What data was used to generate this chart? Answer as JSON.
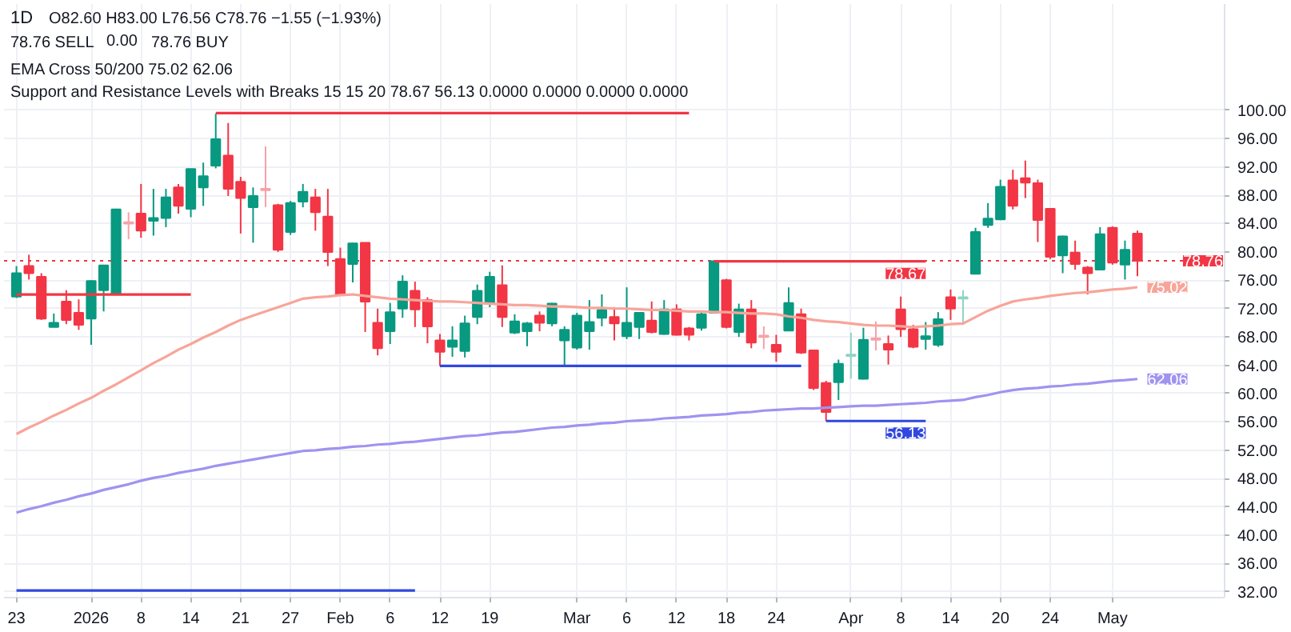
{
  "chart_data": {
    "type": "candlestick",
    "title": "1D",
    "categories": [
      "23",
      null,
      null,
      null,
      null,
      null,
      "2026",
      null,
      null,
      null,
      "8",
      null,
      null,
      null,
      "14",
      null,
      null,
      null,
      "21",
      null,
      null,
      null,
      "27",
      null,
      null,
      null,
      "Feb",
      null,
      null,
      null,
      "6",
      null,
      null,
      null,
      "12",
      null,
      null,
      null,
      "19",
      null,
      null,
      null,
      null,
      null,
      null,
      "Mar",
      null,
      null,
      null,
      "6",
      null,
      null,
      null,
      "12",
      null,
      null,
      null,
      "18",
      null,
      null,
      null,
      "24",
      null,
      null,
      null,
      null,
      null,
      "Apr",
      null,
      null,
      null,
      "8",
      null,
      null,
      null,
      "14",
      null,
      null,
      null,
      "20",
      null,
      null,
      null,
      "24",
      null,
      null,
      null,
      null,
      "May",
      null,
      null
    ],
    "ohlc": [
      [
        73.7,
        78.0,
        73.5,
        77.0
      ],
      [
        78.0,
        79.6,
        76.1,
        77.0
      ],
      [
        76.5,
        77.0,
        70.4,
        70.6
      ],
      [
        69.4,
        71.3,
        69.4,
        70.0
      ],
      [
        73.0,
        74.6,
        69.8,
        70.4
      ],
      [
        71.4,
        73.3,
        69.0,
        69.7
      ],
      [
        70.6,
        76.0,
        66.9,
        75.9
      ],
      [
        74.6,
        78.1,
        71.6,
        78.1
      ],
      [
        74.0,
        86.1,
        74.0,
        86.0
      ],
      [
        84.2,
        85.6,
        81.8,
        84.0
      ],
      [
        85.4,
        89.6,
        82.0,
        83.0
      ],
      [
        84.4,
        88.9,
        82.3,
        84.8
      ],
      [
        84.8,
        88.9,
        83.5,
        87.7
      ],
      [
        89.1,
        89.6,
        85.4,
        86.5
      ],
      [
        86.1,
        91.7,
        84.9,
        91.7
      ],
      [
        89.1,
        92.6,
        86.5,
        90.7
      ],
      [
        92.2,
        99.5,
        91.8,
        95.9
      ],
      [
        93.6,
        98.2,
        87.9,
        88.9
      ],
      [
        89.9,
        90.6,
        82.6,
        87.6
      ],
      [
        86.3,
        89.1,
        81.3,
        87.9
      ],
      [
        88.9,
        94.9,
        86.3,
        88.7
      ],
      [
        86.6,
        86.8,
        80.0,
        80.3
      ],
      [
        82.8,
        87.2,
        82.4,
        86.9
      ],
      [
        87.1,
        89.6,
        86.3,
        88.5
      ],
      [
        87.7,
        88.9,
        83.0,
        85.6
      ],
      [
        85.0,
        88.9,
        78.0,
        80.0
      ],
      [
        79.0,
        80.6,
        74.0,
        74.0
      ],
      [
        78.3,
        81.3,
        75.7,
        81.2
      ],
      [
        81.3,
        81.3,
        68.7,
        73.0
      ],
      [
        70.0,
        72.0,
        65.4,
        66.4
      ],
      [
        68.8,
        72.8,
        67.0,
        71.5
      ],
      [
        72.0,
        76.7,
        70.7,
        75.8
      ],
      [
        74.5,
        75.8,
        69.4,
        71.9
      ],
      [
        73.2,
        73.6,
        67.1,
        69.5
      ],
      [
        67.5,
        68.4,
        63.9,
        65.9
      ],
      [
        66.6,
        69.5,
        65.2,
        67.5
      ],
      [
        66.0,
        71.0,
        65.1,
        69.9
      ],
      [
        70.8,
        75.4,
        69.8,
        74.5
      ],
      [
        72.8,
        77.2,
        72.2,
        76.5
      ],
      [
        75.3,
        78.1,
        69.4,
        70.8
      ],
      [
        68.6,
        71.2,
        68.4,
        70.2
      ],
      [
        68.8,
        70.1,
        66.7,
        69.9
      ],
      [
        71.0,
        71.6,
        68.8,
        70.0
      ],
      [
        69.9,
        72.8,
        69.5,
        72.7
      ],
      [
        67.5,
        69.5,
        63.9,
        69.0
      ],
      [
        66.5,
        71.4,
        66.2,
        71.0
      ],
      [
        68.8,
        73.2,
        66.2,
        70.1
      ],
      [
        70.7,
        74.0,
        69.5,
        71.8
      ],
      [
        70.8,
        72.2,
        67.5,
        69.9
      ],
      [
        68.1,
        75.0,
        67.7,
        70.0
      ],
      [
        69.4,
        71.4,
        67.7,
        71.4
      ],
      [
        70.3,
        73.0,
        68.5,
        68.7
      ],
      [
        68.4,
        73.2,
        68.3,
        71.9
      ],
      [
        71.9,
        72.6,
        68.2,
        68.3
      ],
      [
        69.2,
        69.4,
        67.5,
        68.3
      ],
      [
        69.3,
        71.6,
        68.9,
        71.2
      ],
      [
        71.4,
        78.8,
        71.3,
        78.7
      ],
      [
        76.0,
        76.2,
        69.2,
        69.4
      ],
      [
        68.7,
        72.7,
        68.0,
        71.9
      ],
      [
        71.9,
        73.2,
        66.4,
        67.2
      ],
      [
        68.2,
        69.5,
        66.3,
        68.0
      ],
      [
        66.9,
        68.3,
        64.5,
        65.9
      ],
      [
        68.9,
        75.0,
        68.8,
        72.8
      ],
      [
        71.2,
        72.0,
        65.6,
        65.8
      ],
      [
        66.1,
        66.2,
        60.5,
        60.8
      ],
      [
        61.5,
        61.8,
        56.13,
        57.4
      ],
      [
        61.6,
        64.8,
        59.1,
        64.2
      ],
      [
        65.3,
        68.6,
        62.1,
        65.5
      ],
      [
        62.1,
        69.3,
        62.0,
        67.6
      ],
      [
        67.8,
        70.2,
        66.1,
        67.6
      ],
      [
        67.0,
        68.2,
        64.1,
        66.2
      ],
      [
        71.9,
        73.7,
        68.0,
        69.1
      ],
      [
        69.1,
        69.7,
        66.4,
        66.6
      ],
      [
        67.7,
        70.1,
        66.2,
        68.1
      ],
      [
        66.9,
        71.5,
        66.6,
        70.5
      ],
      [
        73.6,
        74.7,
        70.4,
        72.0
      ],
      [
        73.4,
        74.6,
        69.7,
        73.6
      ],
      [
        76.9,
        83.4,
        76.9,
        82.8
      ],
      [
        83.8,
        86.9,
        83.4,
        84.7
      ],
      [
        84.6,
        90.2,
        84.5,
        89.2
      ],
      [
        90.1,
        91.6,
        86.0,
        86.5
      ],
      [
        90.4,
        92.9,
        87.6,
        89.8
      ],
      [
        89.7,
        90.2,
        81.4,
        84.5
      ],
      [
        86.1,
        86.2,
        79.0,
        79.3
      ],
      [
        79.5,
        82.3,
        77.0,
        82.2
      ],
      [
        79.9,
        81.6,
        77.5,
        78.3
      ],
      [
        77.8,
        78.0,
        74.0,
        77.0
      ],
      [
        77.5,
        83.5,
        77.4,
        82.5
      ],
      [
        83.4,
        83.6,
        78.2,
        78.5
      ],
      [
        78.2,
        81.6,
        76.1,
        80.3
      ],
      [
        82.6,
        83.0,
        76.56,
        78.76
      ]
    ],
    "colors": [
      "#089981",
      "#f23645",
      "#f23645",
      "#089981",
      "#f23645",
      "#f23645",
      "#089981",
      "#089981",
      "#089981",
      "#f7a1a8",
      "#f23645",
      "#089981",
      "#089981",
      "#f23645",
      "#089981",
      "#089981",
      "#089981",
      "#f23645",
      "#f23645",
      "#089981",
      "#f7a1a8",
      "#f23645",
      "#089981",
      "#089981",
      "#f23645",
      "#f23645",
      "#f23645",
      "#089981",
      "#f23645",
      "#f23645",
      "#089981",
      "#089981",
      "#f23645",
      "#f23645",
      "#f23645",
      "#089981",
      "#089981",
      "#089981",
      "#089981",
      "#f23645",
      "#089981",
      "#089981",
      "#f23645",
      "#089981",
      "#089981",
      "#089981",
      "#089981",
      "#089981",
      "#f23645",
      "#089981",
      "#089981",
      "#f23645",
      "#089981",
      "#f23645",
      "#f23645",
      "#089981",
      "#089981",
      "#f23645",
      "#089981",
      "#f23645",
      "#f7a1a8",
      "#f23645",
      "#089981",
      "#f23645",
      "#f23645",
      "#f23645",
      "#089981",
      "#8fd3c5",
      "#089981",
      "#f7a1a8",
      "#f23645",
      "#f23645",
      "#f23645",
      "#089981",
      "#089981",
      "#f23645",
      "#8fd3c5",
      "#089981",
      "#089981",
      "#089981",
      "#f23645",
      "#f23645",
      "#f23645",
      "#f23645",
      "#089981",
      "#f23645",
      "#f23645",
      "#089981",
      "#f23645",
      "#089981",
      "#f23645"
    ],
    "series": [
      {
        "type": "line",
        "color": "#f7a59a",
        "values": [
          54.3,
          55.2,
          56.0,
          56.9,
          57.7,
          58.6,
          59.4,
          60.4,
          61.3,
          62.3,
          63.3,
          64.3,
          65.2,
          66.2,
          67.0,
          67.9,
          68.7,
          69.6,
          70.4,
          71.0,
          71.6,
          72.2,
          72.8,
          73.4,
          73.6,
          73.7,
          73.9,
          74.0,
          73.8,
          73.6,
          73.4,
          73.3,
          73.2,
          73.1,
          73.0,
          73.0,
          72.9,
          72.8,
          72.7,
          72.6,
          72.5,
          72.5,
          72.4,
          72.3,
          72.3,
          72.2,
          72.1,
          72.1,
          72.0,
          72.0,
          71.9,
          71.8,
          71.8,
          71.7,
          71.6,
          71.6,
          71.5,
          71.5,
          71.4,
          71.3,
          71.3,
          71.2,
          70.9,
          70.7,
          70.4,
          70.2,
          70.1,
          69.9,
          69.7,
          69.6,
          69.6,
          69.5,
          69.4,
          69.5,
          69.6,
          69.8,
          69.9,
          70.8,
          71.7,
          72.4,
          73.0,
          73.3,
          73.5,
          73.8,
          74.0,
          74.2,
          74.3,
          74.5,
          74.7,
          74.8,
          75.02
        ],
        "value_labels": [
          null,
          null,
          null,
          null,
          null,
          null,
          null,
          null,
          null,
          null,
          null,
          null,
          null,
          null,
          null,
          null,
          null,
          null,
          null,
          null,
          null,
          null,
          null,
          null,
          null,
          null,
          null,
          null,
          null,
          null,
          null,
          null,
          null,
          null,
          null,
          null,
          null,
          null,
          null,
          null,
          null,
          null,
          null,
          null,
          null,
          null,
          null,
          null,
          null,
          null,
          null,
          null,
          null,
          null,
          null,
          null,
          null,
          null,
          null,
          null,
          null,
          null,
          null,
          null,
          null,
          null,
          null,
          null,
          null,
          null,
          null,
          null,
          null,
          null,
          null,
          null,
          null,
          null,
          null,
          null,
          null,
          null,
          null,
          null,
          null,
          null,
          null,
          null,
          null,
          null,
          "75.02"
        ]
      },
      {
        "type": "line",
        "color": "#9f93f0",
        "values": [
          43.2,
          43.7,
          44.1,
          44.6,
          45.0,
          45.5,
          45.9,
          46.4,
          46.8,
          47.2,
          47.7,
          48.1,
          48.4,
          48.8,
          49.1,
          49.4,
          49.8,
          50.1,
          50.4,
          50.7,
          51.0,
          51.3,
          51.6,
          51.9,
          52.0,
          52.2,
          52.3,
          52.5,
          52.6,
          52.8,
          52.9,
          53.1,
          53.2,
          53.4,
          53.6,
          53.8,
          54.0,
          54.1,
          54.3,
          54.5,
          54.6,
          54.8,
          55.0,
          55.2,
          55.3,
          55.5,
          55.6,
          55.8,
          55.9,
          56.1,
          56.2,
          56.3,
          56.5,
          56.6,
          56.7,
          56.9,
          57.0,
          57.1,
          57.3,
          57.4,
          57.6,
          57.7,
          57.8,
          57.9,
          57.9,
          58.0,
          58.1,
          58.2,
          58.3,
          58.3,
          58.4,
          58.5,
          58.6,
          58.7,
          58.9,
          59.0,
          59.1,
          59.5,
          59.8,
          60.2,
          60.5,
          60.7,
          60.8,
          61.0,
          61.1,
          61.3,
          61.4,
          61.6,
          61.8,
          61.9,
          62.06
        ],
        "value_labels": [
          null,
          null,
          null,
          null,
          null,
          null,
          null,
          null,
          null,
          null,
          null,
          null,
          null,
          null,
          null,
          null,
          null,
          null,
          null,
          null,
          null,
          null,
          null,
          null,
          null,
          null,
          null,
          null,
          null,
          null,
          null,
          null,
          null,
          null,
          null,
          null,
          null,
          null,
          null,
          null,
          null,
          null,
          null,
          null,
          null,
          null,
          null,
          null,
          null,
          null,
          null,
          null,
          null,
          null,
          null,
          null,
          null,
          null,
          null,
          null,
          null,
          null,
          null,
          null,
          null,
          null,
          null,
          null,
          null,
          null,
          null,
          null,
          null,
          null,
          null,
          null,
          null,
          null,
          null,
          null,
          null,
          null,
          null,
          null,
          null,
          null,
          null,
          null,
          null,
          null,
          "62.06"
        ]
      },
      {
        "type": "line",
        "color": "#f23645",
        "values": [
          74.0,
          74.0,
          74.0,
          74.0,
          74.0,
          74.0,
          74.0,
          74.0,
          74.0,
          74.0,
          74.0,
          74.0,
          74.0,
          74.0,
          74.0,
          null,
          99.6,
          99.6,
          99.6,
          99.6,
          99.6,
          99.6,
          99.6,
          99.6,
          99.6,
          99.6,
          99.6,
          99.6,
          99.6,
          99.6,
          99.6,
          99.6,
          99.6,
          99.6,
          99.6,
          99.6,
          99.6,
          99.6,
          99.6,
          99.6,
          99.6,
          99.6,
          99.6,
          99.6,
          99.6,
          99.6,
          99.6,
          99.6,
          99.6,
          99.6,
          99.6,
          99.6,
          99.6,
          99.6,
          99.6,
          null,
          78.67,
          78.67,
          78.67,
          78.67,
          78.67,
          78.67,
          78.67,
          78.67,
          78.67,
          78.67,
          78.67,
          78.67,
          78.67,
          78.67,
          78.67,
          78.67,
          78.67,
          78.67,
          null,
          null,
          null,
          null,
          null,
          null,
          null,
          null,
          null,
          null,
          null,
          null,
          null,
          null,
          null,
          null,
          null
        ],
        "value_labels": [
          null,
          null,
          null,
          null,
          null,
          null,
          null,
          null,
          null,
          null,
          null,
          null,
          null,
          null,
          null,
          null,
          null,
          null,
          null,
          null,
          null,
          null,
          null,
          null,
          null,
          null,
          null,
          null,
          null,
          null,
          null,
          null,
          null,
          null,
          null,
          null,
          null,
          null,
          null,
          null,
          null,
          null,
          null,
          null,
          null,
          null,
          null,
          null,
          null,
          null,
          null,
          null,
          null,
          null,
          null,
          null,
          null,
          null,
          null,
          null,
          null,
          null,
          null,
          null,
          null,
          null,
          null,
          null,
          null,
          null,
          null,
          null,
          null,
          "78.67",
          null,
          null,
          null,
          null,
          null,
          null,
          null,
          null,
          null,
          null,
          null,
          null,
          null,
          null,
          null,
          null,
          null
        ]
      },
      {
        "type": "line",
        "color": "#3048e0",
        "values": [
          32.2,
          32.2,
          32.2,
          32.2,
          32.2,
          32.2,
          32.2,
          32.2,
          32.2,
          32.2,
          32.2,
          32.2,
          32.2,
          32.2,
          32.2,
          32.2,
          32.2,
          32.2,
          32.2,
          32.2,
          32.2,
          32.2,
          32.2,
          32.2,
          32.2,
          32.2,
          32.2,
          32.2,
          32.2,
          32.2,
          32.2,
          32.2,
          32.2,
          null,
          63.9,
          63.9,
          63.9,
          63.9,
          63.9,
          63.9,
          63.9,
          63.9,
          63.9,
          63.9,
          63.9,
          63.9,
          63.9,
          63.9,
          63.9,
          63.9,
          63.9,
          63.9,
          63.9,
          63.9,
          63.9,
          63.9,
          63.9,
          63.9,
          63.9,
          63.9,
          63.9,
          63.9,
          63.9,
          63.9,
          null,
          56.13,
          56.13,
          56.13,
          56.13,
          56.13,
          56.13,
          56.13,
          56.13,
          56.13,
          null,
          null,
          null,
          null,
          null,
          null,
          null,
          null,
          null,
          null,
          null,
          null,
          null,
          null,
          null,
          null,
          null
        ],
        "value_labels": [
          null,
          null,
          null,
          null,
          null,
          null,
          null,
          null,
          null,
          null,
          null,
          null,
          null,
          null,
          null,
          null,
          null,
          null,
          null,
          null,
          null,
          null,
          null,
          null,
          null,
          null,
          null,
          null,
          null,
          null,
          null,
          null,
          null,
          null,
          null,
          null,
          null,
          null,
          null,
          null,
          null,
          null,
          null,
          null,
          null,
          null,
          null,
          null,
          null,
          null,
          null,
          null,
          null,
          null,
          null,
          null,
          null,
          null,
          null,
          null,
          null,
          null,
          null,
          null,
          null,
          null,
          null,
          null,
          null,
          null,
          null,
          null,
          null,
          "56.13",
          null,
          null,
          null,
          null,
          null,
          null,
          null,
          null,
          null,
          null,
          null,
          null,
          null,
          null,
          null,
          null,
          null
        ]
      }
    ],
    "ylim": [
      31.2,
      115
    ],
    "yticks": [
      {
        "value": 32,
        "label": "32.00"
      },
      {
        "value": 36,
        "label": "36.00"
      },
      {
        "value": 40,
        "label": "40.00"
      },
      {
        "value": 44,
        "label": "44.00"
      },
      {
        "value": 48,
        "label": "48.00"
      },
      {
        "value": 52,
        "label": "52.00"
      },
      {
        "value": 56,
        "label": "56.00"
      },
      {
        "value": 60,
        "label": "60.00"
      },
      {
        "value": 64,
        "label": "64.00"
      },
      {
        "value": 68,
        "label": "68.00"
      },
      {
        "value": 72,
        "label": "72.00"
      },
      {
        "value": 76,
        "label": "76.00"
      },
      {
        "value": 80,
        "label": "80.00"
      },
      {
        "value": 84,
        "label": "84.00"
      },
      {
        "value": 88,
        "label": "88.00"
      },
      {
        "value": 92,
        "label": "92.00"
      },
      {
        "value": 96,
        "label": "96.00"
      },
      {
        "value": 100,
        "label": "100.00"
      }
    ],
    "grid": true,
    "ref_lines": [
      {
        "axis": "y",
        "value": 78.76,
        "label": "78.76",
        "color": "#f23645",
        "line_style": "dotted"
      }
    ],
    "annotations": [
      "O82.60 H83.00 L76.56 C78.76 −1.55 (−1.93%)",
      "78.76 SELL",
      "0.00",
      "78.76 BUY",
      "EMA Cross 50/200 75.02 62.06",
      "Support and Resistance Levels with Breaks 15 15 20 78.67 56.13 0.0000 0.0000 0.0000 0.0000"
    ]
  }
}
